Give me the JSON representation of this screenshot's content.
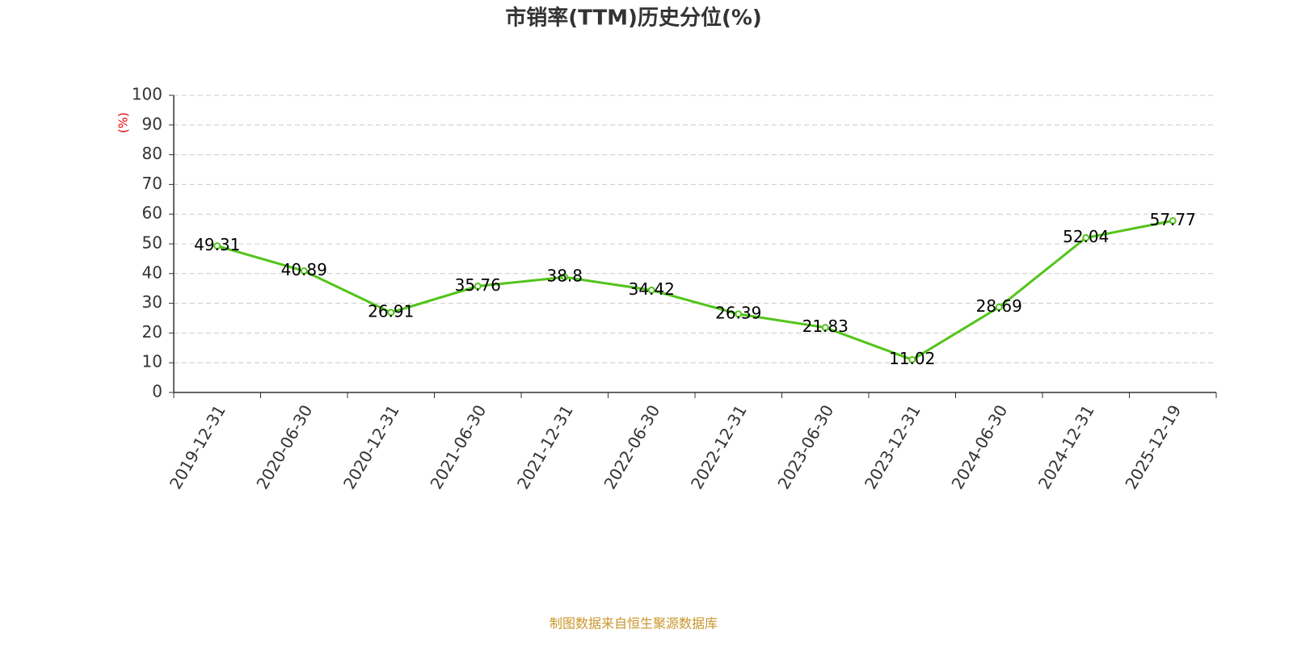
{
  "chart_data": {
    "type": "line",
    "title": "市销率(TTM)历史分位(%)",
    "y_label": "(%)",
    "footer": "制图数据来自恒生聚源数据库",
    "categories": [
      "2019-12-31",
      "2020-06-30",
      "2020-12-31",
      "2021-06-30",
      "2021-12-31",
      "2022-06-30",
      "2022-12-31",
      "2023-06-30",
      "2023-12-31",
      "2024-06-30",
      "2024-12-31",
      "2025-12-19"
    ],
    "values": [
      49.31,
      40.89,
      26.91,
      35.76,
      38.8,
      34.42,
      26.39,
      21.83,
      11.02,
      28.69,
      52.04,
      57.77
    ],
    "color": "#52c41a",
    "ylim": [
      0,
      100
    ],
    "yticks": [
      0,
      10,
      20,
      30,
      40,
      50,
      60,
      70,
      80,
      90,
      100
    ],
    "grid": true
  }
}
